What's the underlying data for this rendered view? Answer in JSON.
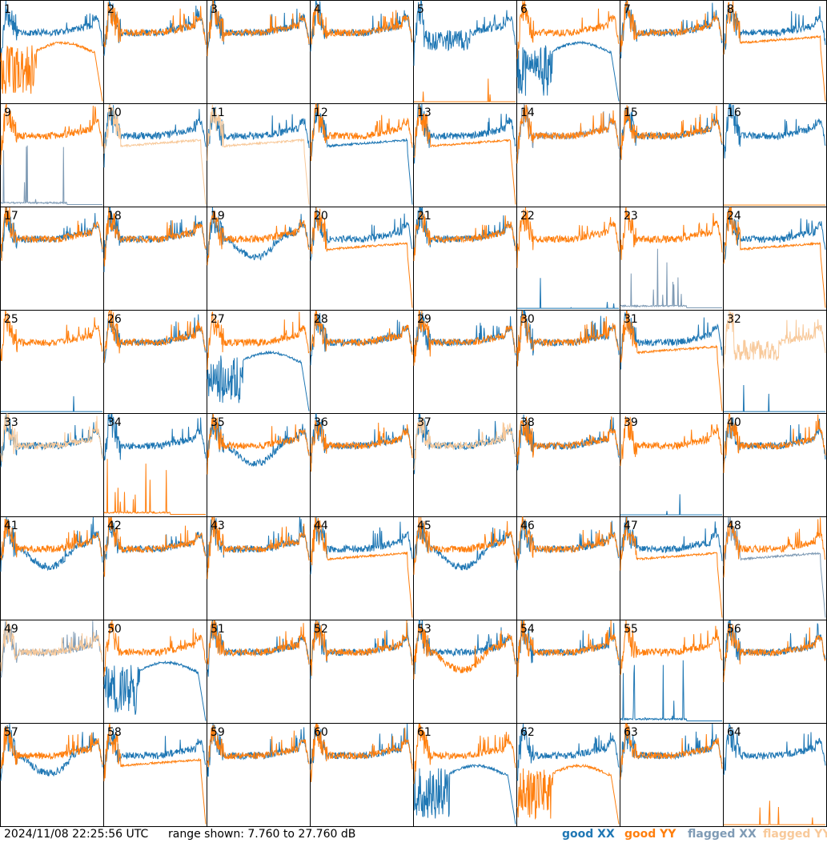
{
  "footer": {
    "timestamp": "2024/11/08 22:25:56 UTC",
    "range_text": "range shown: 7.760 to 27.760 dB"
  },
  "legend": [
    {
      "label": "good XX",
      "color": "#1f77b4"
    },
    {
      "label": "good YY",
      "color": "#ff7f0e"
    },
    {
      "label": "flagged XX",
      "color": "#7f9bb5"
    },
    {
      "label": "flagged YY",
      "color": "#f8c99a"
    }
  ],
  "chart_data": {
    "type": "line",
    "ylim": [
      7.76,
      27.76
    ],
    "panels": [
      {
        "id": "1",
        "xx": "good",
        "yy": "good",
        "xx_shape": "normal",
        "yy_shape": "droop"
      },
      {
        "id": "2",
        "xx": "good",
        "yy": "good",
        "xx_shape": "normal",
        "yy_shape": "normal"
      },
      {
        "id": "3",
        "xx": "good",
        "yy": "good",
        "xx_shape": "normal",
        "yy_shape": "normal"
      },
      {
        "id": "4",
        "xx": "good",
        "yy": "good",
        "xx_shape": "normal",
        "yy_shape": "normal"
      },
      {
        "id": "5",
        "xx": "good",
        "yy": "good",
        "xx_shape": "noisy",
        "yy_shape": "dead"
      },
      {
        "id": "6",
        "xx": "good",
        "yy": "good",
        "xx_shape": "droop",
        "yy_shape": "normal"
      },
      {
        "id": "7",
        "xx": "good",
        "yy": "good",
        "xx_shape": "normal",
        "yy_shape": "normal"
      },
      {
        "id": "8",
        "xx": "good",
        "yy": "good",
        "xx_shape": "normal",
        "yy_shape": "low"
      },
      {
        "id": "9",
        "xx": "flagged",
        "yy": "good",
        "xx_shape": "spiky",
        "yy_shape": "normal"
      },
      {
        "id": "10",
        "xx": "good",
        "yy": "flagged",
        "xx_shape": "normal",
        "yy_shape": "low"
      },
      {
        "id": "11",
        "xx": "good",
        "yy": "flagged",
        "xx_shape": "normal",
        "yy_shape": "low"
      },
      {
        "id": "12",
        "xx": "good",
        "yy": "good",
        "xx_shape": "low",
        "yy_shape": "normal"
      },
      {
        "id": "13",
        "xx": "good",
        "yy": "good",
        "xx_shape": "normal",
        "yy_shape": "low"
      },
      {
        "id": "14",
        "xx": "flagged",
        "yy": "good",
        "xx_shape": "normal",
        "yy_shape": "normal"
      },
      {
        "id": "15",
        "xx": "good",
        "yy": "good",
        "xx_shape": "normal",
        "yy_shape": "normal"
      },
      {
        "id": "16",
        "xx": "good",
        "yy": "good",
        "xx_shape": "normal",
        "yy_shape": "dead"
      },
      {
        "id": "17",
        "xx": "good",
        "yy": "good",
        "xx_shape": "normal",
        "yy_shape": "normal"
      },
      {
        "id": "18",
        "xx": "good",
        "yy": "good",
        "xx_shape": "normal",
        "yy_shape": "normal"
      },
      {
        "id": "19",
        "xx": "good",
        "yy": "good",
        "xx_shape": "dip",
        "yy_shape": "normal"
      },
      {
        "id": "20",
        "xx": "good",
        "yy": "good",
        "xx_shape": "normal",
        "yy_shape": "low"
      },
      {
        "id": "21",
        "xx": "good",
        "yy": "good",
        "xx_shape": "normal",
        "yy_shape": "normal"
      },
      {
        "id": "22",
        "xx": "good",
        "yy": "good",
        "xx_shape": "dead",
        "yy_shape": "normal"
      },
      {
        "id": "23",
        "xx": "flagged",
        "yy": "good",
        "xx_shape": "spiky",
        "yy_shape": "normal"
      },
      {
        "id": "24",
        "xx": "good",
        "yy": "good",
        "xx_shape": "normal",
        "yy_shape": "low"
      },
      {
        "id": "25",
        "xx": "good",
        "yy": "good",
        "xx_shape": "dead",
        "yy_shape": "normal"
      },
      {
        "id": "26",
        "xx": "good",
        "yy": "good",
        "xx_shape": "normal",
        "yy_shape": "normal"
      },
      {
        "id": "27",
        "xx": "good",
        "yy": "good",
        "xx_shape": "droop",
        "yy_shape": "normal"
      },
      {
        "id": "28",
        "xx": "good",
        "yy": "good",
        "xx_shape": "normal",
        "yy_shape": "normal"
      },
      {
        "id": "29",
        "xx": "good",
        "yy": "good",
        "xx_shape": "normal",
        "yy_shape": "normal"
      },
      {
        "id": "30",
        "xx": "good",
        "yy": "good",
        "xx_shape": "normal",
        "yy_shape": "normal"
      },
      {
        "id": "31",
        "xx": "good",
        "yy": "good",
        "xx_shape": "normal",
        "yy_shape": "low"
      },
      {
        "id": "32",
        "xx": "good",
        "yy": "flagged",
        "xx_shape": "dead",
        "yy_shape": "noisy"
      },
      {
        "id": "33",
        "xx": "good",
        "yy": "flagged",
        "xx_shape": "normal",
        "yy_shape": "normal"
      },
      {
        "id": "34",
        "xx": "good",
        "yy": "good",
        "xx_shape": "normal",
        "yy_shape": "spiky"
      },
      {
        "id": "35",
        "xx": "good",
        "yy": "good",
        "xx_shape": "dip",
        "yy_shape": "normal"
      },
      {
        "id": "36",
        "xx": "good",
        "yy": "good",
        "xx_shape": "normal",
        "yy_shape": "normal"
      },
      {
        "id": "37",
        "xx": "good",
        "yy": "flagged",
        "xx_shape": "normal",
        "yy_shape": "normal"
      },
      {
        "id": "38",
        "xx": "good",
        "yy": "good",
        "xx_shape": "normal",
        "yy_shape": "normal"
      },
      {
        "id": "39",
        "xx": "good",
        "yy": "good",
        "xx_shape": "dead",
        "yy_shape": "normal"
      },
      {
        "id": "40",
        "xx": "good",
        "yy": "good",
        "xx_shape": "normal",
        "yy_shape": "normal"
      },
      {
        "id": "41",
        "xx": "good",
        "yy": "good",
        "xx_shape": "dip",
        "yy_shape": "normal"
      },
      {
        "id": "42",
        "xx": "good",
        "yy": "good",
        "xx_shape": "normal",
        "yy_shape": "normal"
      },
      {
        "id": "43",
        "xx": "good",
        "yy": "good",
        "xx_shape": "normal",
        "yy_shape": "normal"
      },
      {
        "id": "44",
        "xx": "good",
        "yy": "good",
        "xx_shape": "normal",
        "yy_shape": "low"
      },
      {
        "id": "45",
        "xx": "good",
        "yy": "good",
        "xx_shape": "dip",
        "yy_shape": "normal"
      },
      {
        "id": "46",
        "xx": "good",
        "yy": "good",
        "xx_shape": "normal",
        "yy_shape": "normal"
      },
      {
        "id": "47",
        "xx": "good",
        "yy": "good",
        "xx_shape": "normal",
        "yy_shape": "low"
      },
      {
        "id": "48",
        "xx": "flagged",
        "yy": "good",
        "xx_shape": "low",
        "yy_shape": "normal"
      },
      {
        "id": "49",
        "xx": "flagged",
        "yy": "flagged",
        "xx_shape": "normal",
        "yy_shape": "normal"
      },
      {
        "id": "50",
        "xx": "good",
        "yy": "good",
        "xx_shape": "droop",
        "yy_shape": "normal"
      },
      {
        "id": "51",
        "xx": "good",
        "yy": "good",
        "xx_shape": "normal",
        "yy_shape": "normal"
      },
      {
        "id": "52",
        "xx": "good",
        "yy": "good",
        "xx_shape": "normal",
        "yy_shape": "normal"
      },
      {
        "id": "53",
        "xx": "good",
        "yy": "good",
        "xx_shape": "normal",
        "yy_shape": "dip"
      },
      {
        "id": "54",
        "xx": "good",
        "yy": "good",
        "xx_shape": "normal",
        "yy_shape": "normal"
      },
      {
        "id": "55",
        "xx": "good",
        "yy": "good",
        "xx_shape": "spiky",
        "yy_shape": "normal"
      },
      {
        "id": "56",
        "xx": "good",
        "yy": "good",
        "xx_shape": "normal",
        "yy_shape": "normal"
      },
      {
        "id": "57",
        "xx": "good",
        "yy": "good",
        "xx_shape": "dip",
        "yy_shape": "normal"
      },
      {
        "id": "58",
        "xx": "good",
        "yy": "good",
        "xx_shape": "normal",
        "yy_shape": "low"
      },
      {
        "id": "59",
        "xx": "good",
        "yy": "good",
        "xx_shape": "normal",
        "yy_shape": "normal"
      },
      {
        "id": "60",
        "xx": "good",
        "yy": "good",
        "xx_shape": "normal",
        "yy_shape": "normal"
      },
      {
        "id": "61",
        "xx": "good",
        "yy": "good",
        "xx_shape": "droop",
        "yy_shape": "normal"
      },
      {
        "id": "62",
        "xx": "good",
        "yy": "good",
        "xx_shape": "normal",
        "yy_shape": "droop"
      },
      {
        "id": "63",
        "xx": "good",
        "yy": "good",
        "xx_shape": "normal",
        "yy_shape": "normal"
      },
      {
        "id": "64",
        "xx": "good",
        "yy": "good",
        "xx_shape": "normal",
        "yy_shape": "dead"
      }
    ]
  }
}
